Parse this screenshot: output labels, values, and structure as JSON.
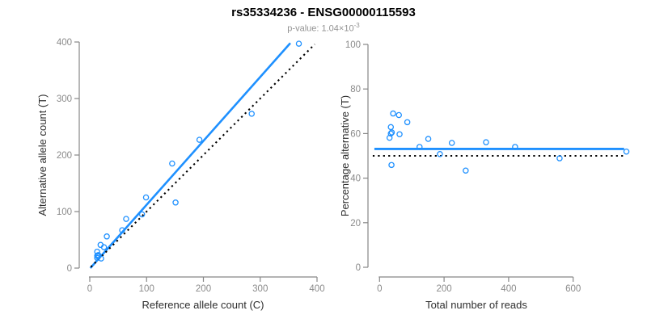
{
  "figure": {
    "title": "rs35334236 - ENSG00000115593",
    "subtitle_main": "p-value: 1.04×10",
    "subtitle_exponent": "-3"
  },
  "colors": {
    "accent_blue": "#1E90FF",
    "line_black": "#000000",
    "axis_gray": "#878787",
    "tick_label_gray": "#8a8a8a",
    "axis_title_dark": "#2e2e2e",
    "title_black": "#000000",
    "subtitle_gray": "#929292",
    "background": "#ffffff"
  },
  "chart_data": [
    {
      "type": "scatter",
      "panel": "left",
      "xlabel": "Reference allele count (C)",
      "ylabel": "Alternative allele count (T)",
      "xlim": [
        0,
        400
      ],
      "ylim": [
        0,
        400
      ],
      "xticks": [
        0,
        100,
        200,
        300,
        400
      ],
      "yticks": [
        0,
        100,
        200,
        300,
        400
      ],
      "grid": false,
      "point_color": "#1E90FF",
      "points": [
        [
          13,
          29
        ],
        [
          19,
          41
        ],
        [
          30,
          56
        ],
        [
          13,
          22
        ],
        [
          15,
          23
        ],
        [
          14,
          21
        ],
        [
          13,
          18
        ],
        [
          25,
          37
        ],
        [
          64,
          87
        ],
        [
          57,
          67
        ],
        [
          99,
          125
        ],
        [
          145,
          185
        ],
        [
          92,
          95
        ],
        [
          193,
          227
        ],
        [
          20,
          17
        ],
        [
          151,
          116
        ],
        [
          285,
          273
        ],
        [
          368,
          397
        ]
      ],
      "lines": [
        {
          "name": "regression-line",
          "x1": 1,
          "y1": 0,
          "x2": 353,
          "y2": 398,
          "color": "#1E90FF",
          "style": "solid",
          "width": 2.6
        },
        {
          "name": "identity-line",
          "x1": 2,
          "y1": 2,
          "x2": 396,
          "y2": 396,
          "color": "#000000",
          "style": "dotted",
          "width": 2.1
        }
      ]
    },
    {
      "type": "scatter",
      "panel": "right",
      "xlabel": "Total number of reads",
      "ylabel": "Percentage alternative (T)",
      "xlim": [
        0,
        600
      ],
      "ylim": [
        0,
        100
      ],
      "xticks": [
        0,
        200,
        400,
        600
      ],
      "yticks": [
        0,
        20,
        40,
        60,
        80,
        100
      ],
      "grid": false,
      "point_color": "#1E90FF",
      "points": [
        [
          42,
          69.0
        ],
        [
          60,
          68.3
        ],
        [
          86,
          65.1
        ],
        [
          35,
          62.9
        ],
        [
          38,
          60.5
        ],
        [
          35,
          60.0
        ],
        [
          31,
          58.1
        ],
        [
          62,
          59.7
        ],
        [
          151,
          57.6
        ],
        [
          124,
          54.0
        ],
        [
          224,
          55.8
        ],
        [
          330,
          56.1
        ],
        [
          187,
          50.8
        ],
        [
          420,
          54.0
        ],
        [
          37,
          45.9
        ],
        [
          267,
          43.4
        ],
        [
          558,
          48.9
        ],
        [
          765,
          51.9
        ]
      ],
      "lines": [
        {
          "name": "mean-percentage-line",
          "x1": -16,
          "y1": 53.1,
          "x2": 758,
          "y2": 53.1,
          "color": "#1E90FF",
          "style": "solid",
          "width": 2.8
        },
        {
          "name": "fifty-percent-line",
          "x1": -21,
          "y1": 50,
          "x2": 755,
          "y2": 50,
          "color": "#000000",
          "style": "dotted",
          "width": 2.1
        }
      ]
    }
  ]
}
